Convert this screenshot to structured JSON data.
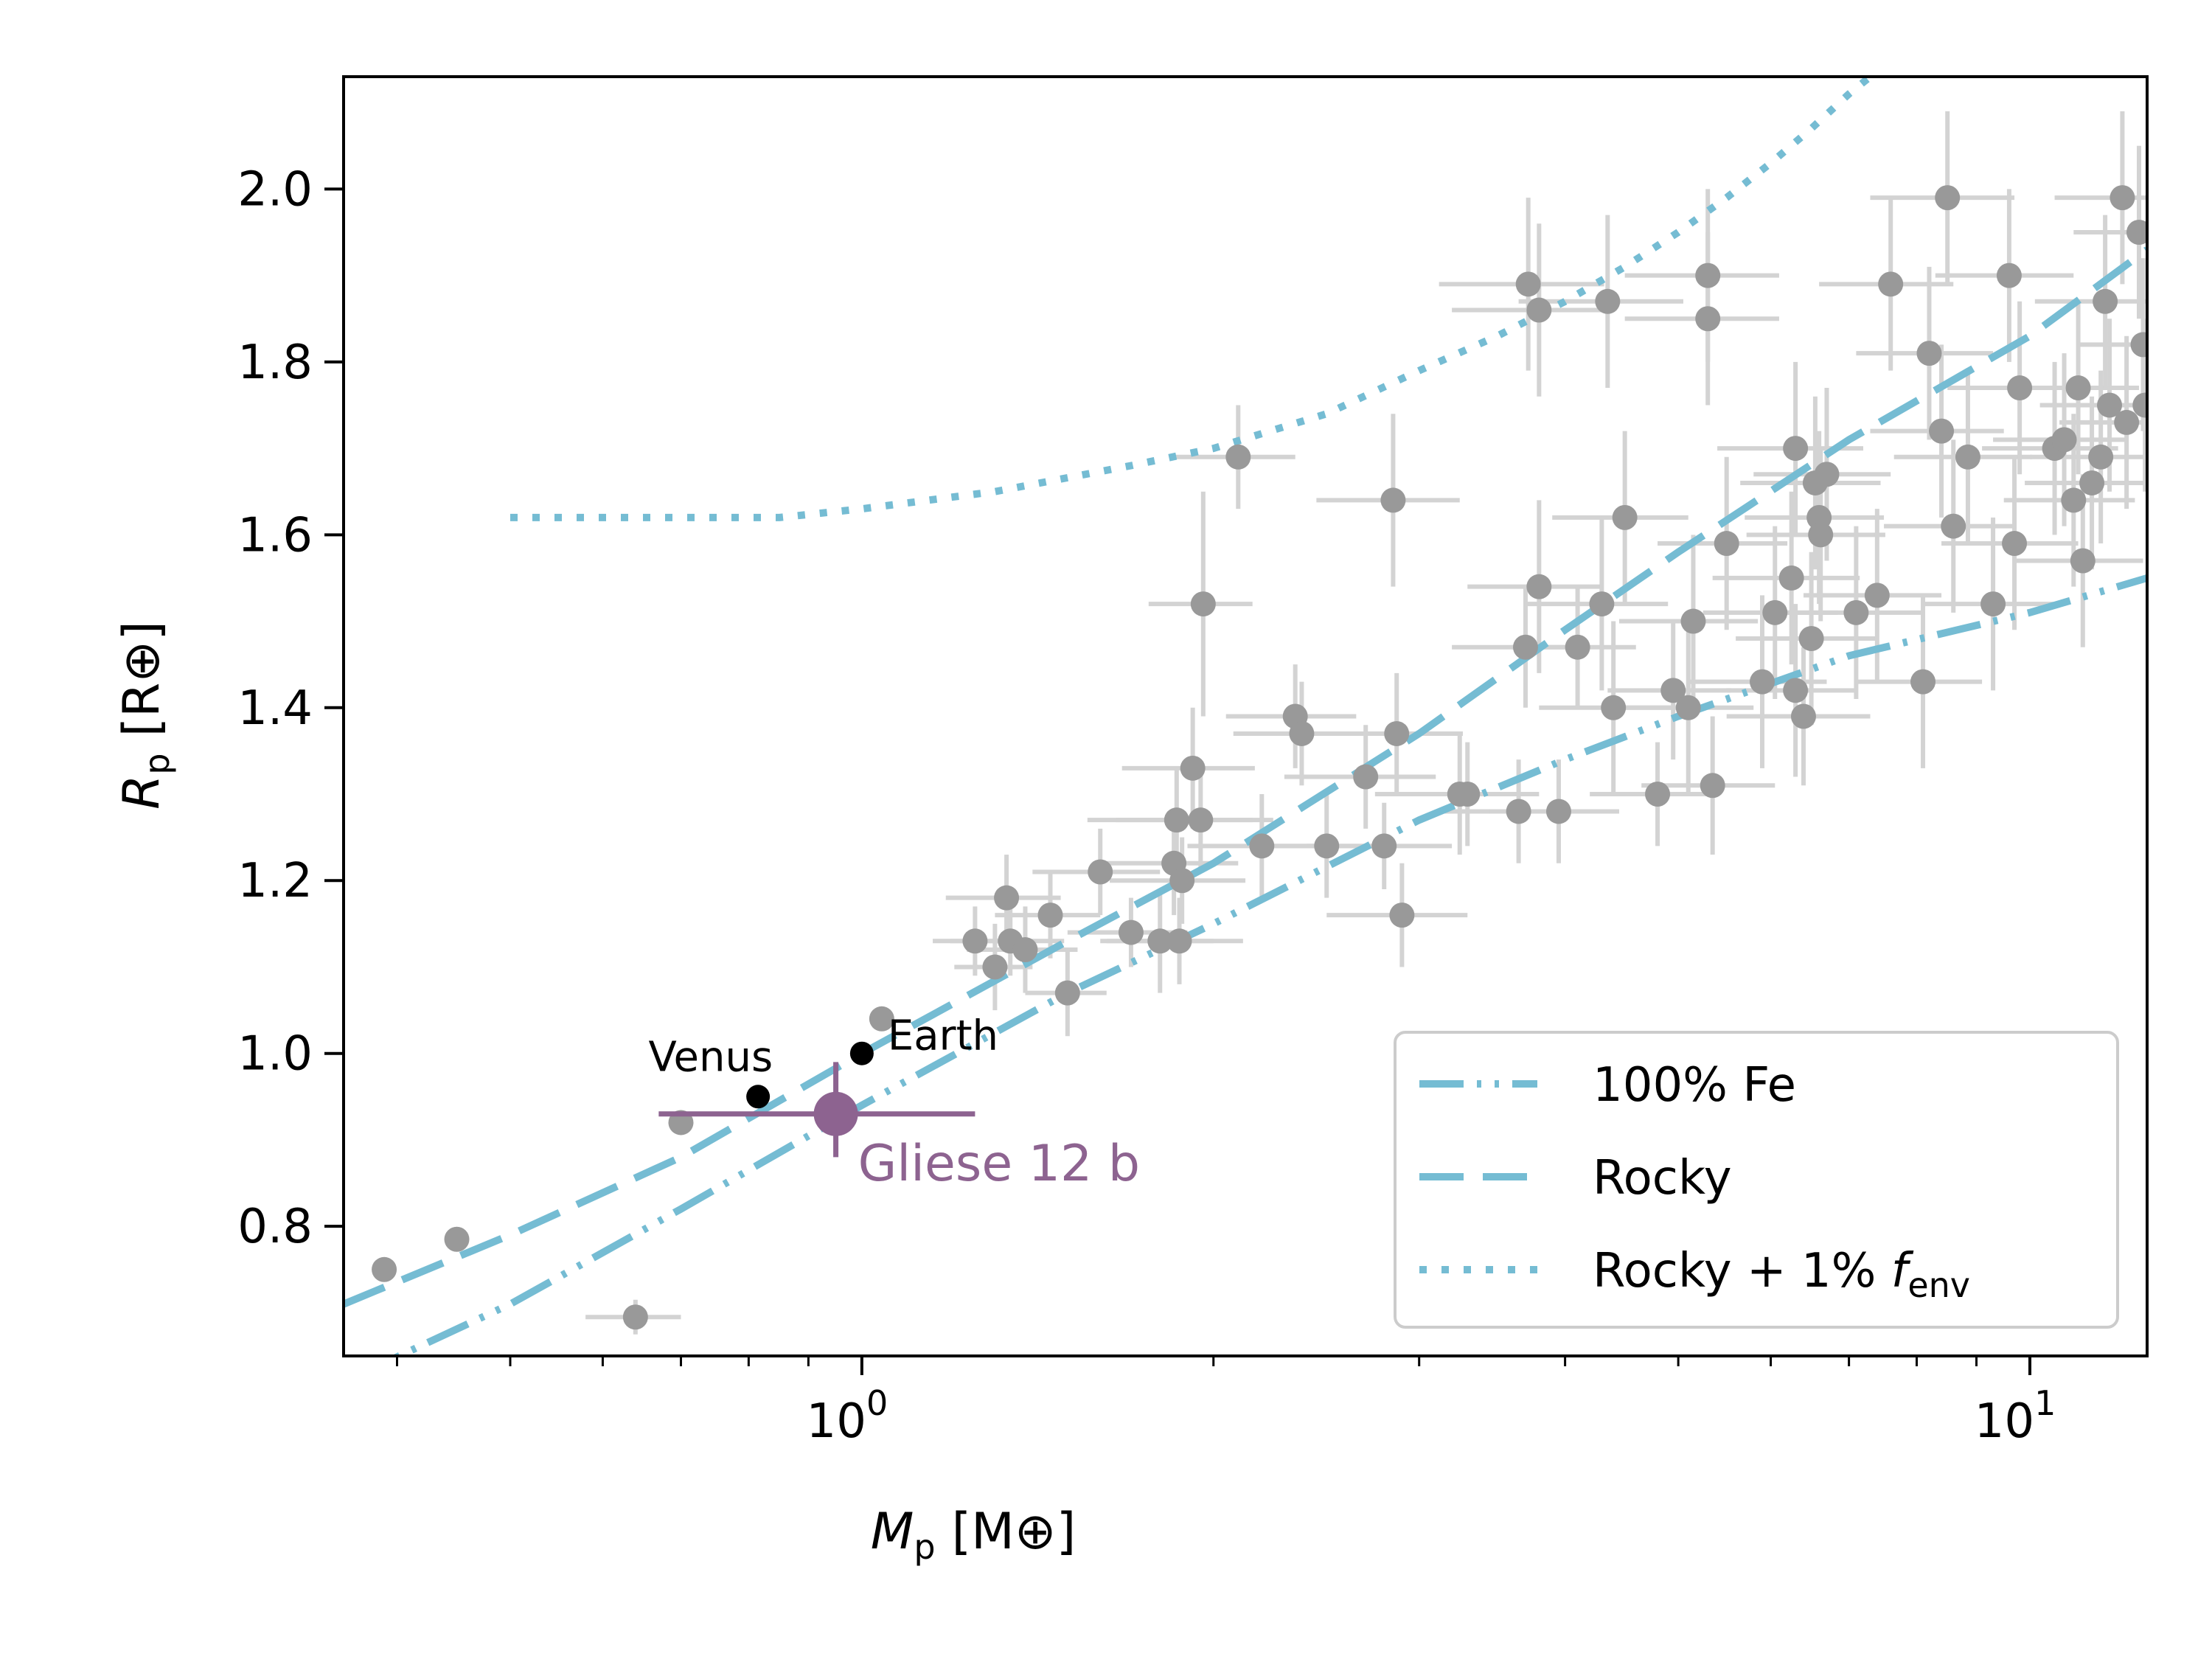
{
  "chart_data": {
    "type": "scatter",
    "xscale": "log",
    "xlim": [
      0.36,
      12.6
    ],
    "ylim": [
      0.65,
      2.13
    ],
    "xlabel": {
      "symbol": "M",
      "sub": "p",
      "unit": "[M⊕]"
    },
    "ylabel": {
      "symbol": "R",
      "sub": "p",
      "unit": "[R⊕]"
    },
    "xticks": [
      {
        "value": 1,
        "base": "10",
        "exp": "0"
      },
      {
        "value": 10,
        "base": "10",
        "exp": "1"
      }
    ],
    "xminor_ticks": [
      0.4,
      0.5,
      0.6,
      0.7,
      0.8,
      0.9,
      2,
      3,
      4,
      5,
      6,
      7,
      8,
      9
    ],
    "yticks": [
      {
        "value": 0.8,
        "label": "0.8"
      },
      {
        "value": 1.0,
        "label": "1.0"
      },
      {
        "value": 1.2,
        "label": "1.2"
      },
      {
        "value": 1.4,
        "label": "1.4"
      },
      {
        "value": 1.6,
        "label": "1.6"
      },
      {
        "value": 1.8,
        "label": "1.8"
      },
      {
        "value": 2.0,
        "label": "2.0"
      }
    ],
    "colors": {
      "curve": "#75bcd3",
      "known": "#999999",
      "errorbar": "#d3d3d3",
      "highlight": "#8d6390",
      "solar": "#000000"
    },
    "curves": [
      {
        "name": "100% Fe",
        "style": "dashdotdot",
        "points": [
          [
            0.36,
            0.62
          ],
          [
            0.5,
            0.71
          ],
          [
            0.7,
            0.82
          ],
          [
            1.0,
            0.94
          ],
          [
            1.5,
            1.07
          ],
          [
            2.0,
            1.15
          ],
          [
            3.0,
            1.27
          ],
          [
            4.0,
            1.34
          ],
          [
            5.0,
            1.39
          ],
          [
            7.0,
            1.46
          ],
          [
            10.0,
            1.51
          ],
          [
            12.6,
            1.55
          ]
        ]
      },
      {
        "name": "Rocky",
        "style": "dashed",
        "points": [
          [
            0.36,
            0.71
          ],
          [
            0.5,
            0.79
          ],
          [
            0.7,
            0.88
          ],
          [
            1.0,
            1.0
          ],
          [
            1.5,
            1.13
          ],
          [
            2.0,
            1.22
          ],
          [
            3.0,
            1.37
          ],
          [
            4.0,
            1.49
          ],
          [
            5.0,
            1.58
          ],
          [
            7.0,
            1.71
          ],
          [
            10.0,
            1.83
          ],
          [
            12.6,
            1.93
          ]
        ]
      },
      {
        "name": "Rocky + 1% f_env",
        "style": "dotted",
        "points": [
          [
            0.5,
            1.62
          ],
          [
            0.7,
            1.62
          ],
          [
            0.85,
            1.62
          ],
          [
            1.0,
            1.63
          ],
          [
            1.3,
            1.65
          ],
          [
            1.7,
            1.68
          ],
          [
            2.0,
            1.7
          ],
          [
            2.5,
            1.74
          ],
          [
            3.0,
            1.79
          ],
          [
            3.5,
            1.83
          ],
          [
            4.0,
            1.87
          ],
          [
            4.5,
            1.91
          ],
          [
            5.0,
            1.95
          ],
          [
            5.5,
            1.99
          ],
          [
            6.0,
            2.03
          ],
          [
            6.5,
            2.07
          ],
          [
            7.0,
            2.11
          ],
          [
            7.3,
            2.13
          ]
        ]
      }
    ],
    "legend": {
      "position": "lower right",
      "entries": [
        {
          "label": "100% Fe",
          "style": "dashdotdot"
        },
        {
          "label": "Rocky",
          "style": "dashed"
        },
        {
          "label": "Rocky + 1% ",
          "env_symbol": "f",
          "env_sub": "env",
          "style": "dotted"
        }
      ]
    },
    "solar_system": [
      {
        "name": "Venus",
        "x": 0.815,
        "y": 0.95
      },
      {
        "name": "Earth",
        "x": 1.0,
        "y": 1.0
      }
    ],
    "highlight": {
      "name": "Gliese 12 b",
      "x": 0.95,
      "y": 0.93,
      "xerr": [
        0.28,
        0.3
      ],
      "yerr": [
        0.05,
        0.06
      ]
    },
    "known_planets": [
      [
        0.39,
        0.75,
        0,
        0
      ],
      [
        0.45,
        0.785,
        0,
        0
      ],
      [
        0.7,
        0.92,
        0,
        0
      ],
      [
        0.64,
        0.695,
        0.06,
        0.02
      ],
      [
        1.04,
        1.04,
        0,
        0
      ],
      [
        1.25,
        1.13,
        0.1,
        0.04
      ],
      [
        1.3,
        1.1,
        0.1,
        0.05
      ],
      [
        1.33,
        1.18,
        0.15,
        0.05
      ],
      [
        1.34,
        1.13,
        0.15,
        0.04
      ],
      [
        1.38,
        1.12,
        0.15,
        0.05
      ],
      [
        1.45,
        1.16,
        0.15,
        0.05
      ],
      [
        1.5,
        1.07,
        0.12,
        0.05
      ],
      [
        1.6,
        1.21,
        0.2,
        0.05
      ],
      [
        1.7,
        1.14,
        0.2,
        0.04
      ],
      [
        1.8,
        1.13,
        0.2,
        0.06
      ],
      [
        1.85,
        1.22,
        0.25,
        0.06
      ],
      [
        1.86,
        1.27,
        0.3,
        0.06
      ],
      [
        1.87,
        1.13,
        0.25,
        0.05
      ],
      [
        1.88,
        1.2,
        0.25,
        0.05
      ],
      [
        1.92,
        1.33,
        0.25,
        0.07
      ],
      [
        1.95,
        1.27,
        0.3,
        0.06
      ],
      [
        1.96,
        1.52,
        0.2,
        0.13
      ],
      [
        2.1,
        1.69,
        0.25,
        0.06
      ],
      [
        2.2,
        1.24,
        0.3,
        0.06
      ],
      [
        2.35,
        1.39,
        0.3,
        0.06
      ],
      [
        2.38,
        1.37,
        0.3,
        0.06
      ],
      [
        2.5,
        1.24,
        0.35,
        0.06
      ],
      [
        2.7,
        1.32,
        0.4,
        0.06
      ],
      [
        2.8,
        1.24,
        0.4,
        0.05
      ],
      [
        2.87,
        1.37,
        0.4,
        0.07
      ],
      [
        2.85,
        1.64,
        0.4,
        0.1
      ],
      [
        2.9,
        1.16,
        0.4,
        0.06
      ],
      [
        3.25,
        1.3,
        0.5,
        0.07
      ],
      [
        3.3,
        1.3,
        0.5,
        0.06
      ],
      [
        3.65,
        1.28,
        0.5,
        0.06
      ],
      [
        3.7,
        1.47,
        0.5,
        0.07
      ],
      [
        3.72,
        1.89,
        0.6,
        0.1
      ],
      [
        3.8,
        1.86,
        0.6,
        0.1
      ],
      [
        3.8,
        1.54,
        0.5,
        0.1
      ],
      [
        3.95,
        1.28,
        0.5,
        0.06
      ],
      [
        4.1,
        1.47,
        0.5,
        0.07
      ],
      [
        4.3,
        1.52,
        0.6,
        0.1
      ],
      [
        4.35,
        1.87,
        0.7,
        0.1
      ],
      [
        4.4,
        1.4,
        0.6,
        0.1
      ],
      [
        4.5,
        1.62,
        0.6,
        0.1
      ],
      [
        4.8,
        1.3,
        0.6,
        0.06
      ],
      [
        4.95,
        1.42,
        0.6,
        0.08
      ],
      [
        5.1,
        1.4,
        0.7,
        0.1
      ],
      [
        5.15,
        1.5,
        0.7,
        0.1
      ],
      [
        5.3,
        1.9,
        0.8,
        0.1
      ],
      [
        5.3,
        1.85,
        0.8,
        0.1
      ],
      [
        5.35,
        1.31,
        0.7,
        0.08
      ],
      [
        5.5,
        1.59,
        0.7,
        0.1
      ],
      [
        5.9,
        1.43,
        0.8,
        0.1
      ],
      [
        6.05,
        1.51,
        0.8,
        0.1
      ],
      [
        6.25,
        1.55,
        0.9,
        0.1
      ],
      [
        6.3,
        1.7,
        0.9,
        0.1
      ],
      [
        6.3,
        1.42,
        0.8,
        0.1
      ],
      [
        6.4,
        1.39,
        0.9,
        0.08
      ],
      [
        6.5,
        1.48,
        0.9,
        0.1
      ],
      [
        6.55,
        1.66,
        0.9,
        0.1
      ],
      [
        6.6,
        1.62,
        0.9,
        0.1
      ],
      [
        6.62,
        1.6,
        0.9,
        0.1
      ],
      [
        6.7,
        1.67,
        0.9,
        0.1
      ],
      [
        7.1,
        1.51,
        1.0,
        0.1
      ],
      [
        7.4,
        1.53,
        1.0,
        0.1
      ],
      [
        7.6,
        1.89,
        1.0,
        0.1
      ],
      [
        8.1,
        1.43,
        1.0,
        0.1
      ],
      [
        8.2,
        1.81,
        1.1,
        0.1
      ],
      [
        8.4,
        1.72,
        1.1,
        0.1
      ],
      [
        8.5,
        1.99,
        1.2,
        0.1
      ],
      [
        8.6,
        1.61,
        1.1,
        0.1
      ],
      [
        8.85,
        1.69,
        1.2,
        0.1
      ],
      [
        9.3,
        1.52,
        1.2,
        0.1
      ],
      [
        9.6,
        1.9,
        1.3,
        0.1
      ],
      [
        9.7,
        1.59,
        1.3,
        0.1
      ],
      [
        9.8,
        1.77,
        1.3,
        0.1
      ],
      [
        10.5,
        1.7,
        1.4,
        0.1
      ],
      [
        10.7,
        1.71,
        1.4,
        0.1
      ],
      [
        10.9,
        1.64,
        1.4,
        0.1
      ],
      [
        11.0,
        1.77,
        1.4,
        0.1
      ],
      [
        11.1,
        1.57,
        1.4,
        0.1
      ],
      [
        11.3,
        1.66,
        1.4,
        0.1
      ],
      [
        11.5,
        1.69,
        1.5,
        0.1
      ],
      [
        11.6,
        1.87,
        1.5,
        0.1
      ],
      [
        11.7,
        1.75,
        1.5,
        0.1
      ],
      [
        12.0,
        1.99,
        1.5,
        0.1
      ],
      [
        12.1,
        1.73,
        1.5,
        0.1
      ],
      [
        12.4,
        1.95,
        1.5,
        0.1
      ],
      [
        12.5,
        1.82,
        1.5,
        0.1
      ],
      [
        12.55,
        1.75,
        1.5,
        0.1
      ]
    ]
  }
}
